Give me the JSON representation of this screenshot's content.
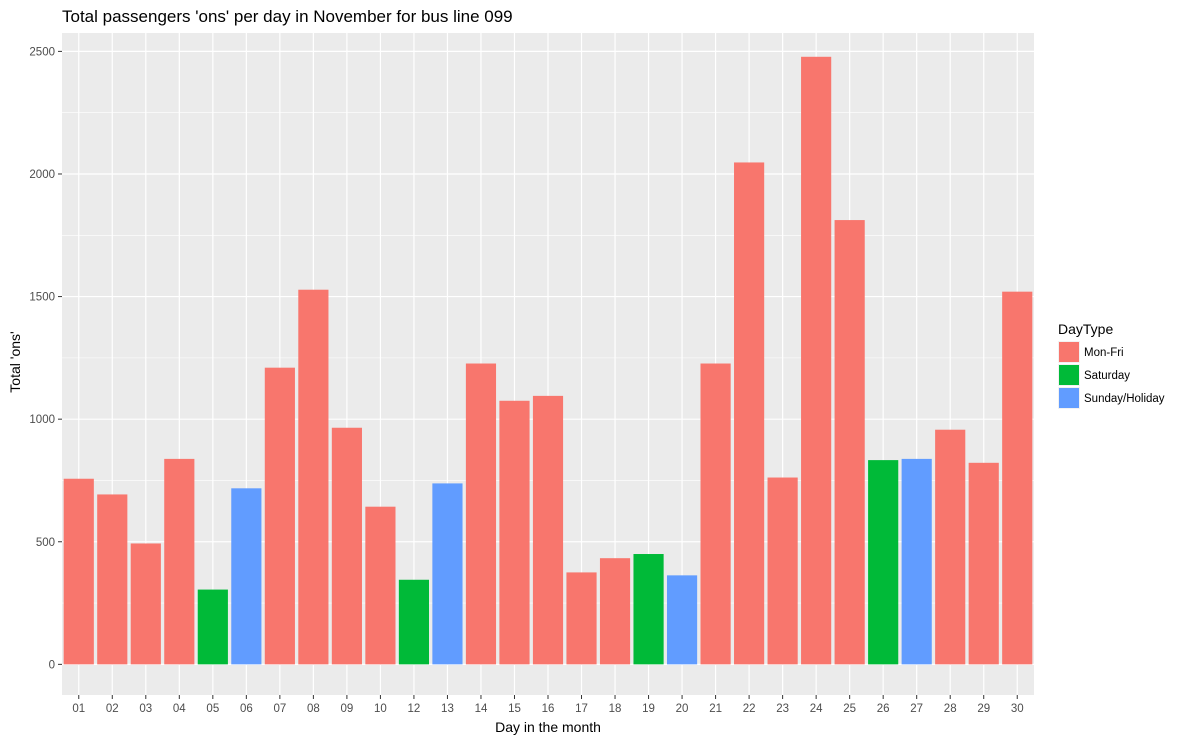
{
  "chart_data": {
    "type": "bar",
    "title": "Total passengers 'ons' per day in November for bus line 099",
    "xlabel": "Day in the month",
    "ylabel": "Total 'ons'",
    "ylim": [
      -125,
      2575
    ],
    "yticks": [
      0,
      500,
      1000,
      1500,
      2000,
      2500
    ],
    "grid": true,
    "legend_position": "right",
    "legend": {
      "title": "DayType",
      "entries": [
        {
          "name": "Mon-Fri",
          "color": "#F8766D"
        },
        {
          "name": "Saturday",
          "color": "#00BA38"
        },
        {
          "name": "Sunday/Holiday",
          "color": "#619CFF"
        }
      ]
    },
    "categories": [
      "01",
      "02",
      "03",
      "04",
      "05",
      "06",
      "07",
      "08",
      "09",
      "10",
      "12",
      "13",
      "14",
      "15",
      "16",
      "17",
      "18",
      "19",
      "20",
      "21",
      "22",
      "23",
      "24",
      "25",
      "26",
      "27",
      "28",
      "29",
      "30"
    ],
    "values": [
      757,
      693,
      493,
      838,
      305,
      718,
      1210,
      1528,
      965,
      643,
      345,
      738,
      1227,
      1075,
      1095,
      375,
      433,
      450,
      363,
      1227,
      2047,
      762,
      2478,
      1812,
      833,
      838,
      957,
      822,
      1520
    ],
    "daytypes": [
      "Mon-Fri",
      "Mon-Fri",
      "Mon-Fri",
      "Mon-Fri",
      "Saturday",
      "Sunday/Holiday",
      "Mon-Fri",
      "Mon-Fri",
      "Mon-Fri",
      "Mon-Fri",
      "Saturday",
      "Sunday/Holiday",
      "Mon-Fri",
      "Mon-Fri",
      "Mon-Fri",
      "Mon-Fri",
      "Mon-Fri",
      "Saturday",
      "Sunday/Holiday",
      "Mon-Fri",
      "Mon-Fri",
      "Mon-Fri",
      "Mon-Fri",
      "Mon-Fri",
      "Saturday",
      "Sunday/Holiday",
      "Mon-Fri",
      "Mon-Fri",
      "Mon-Fri"
    ],
    "panel_color": "#EBEBEB",
    "grid_color": "#FFFFFF"
  }
}
